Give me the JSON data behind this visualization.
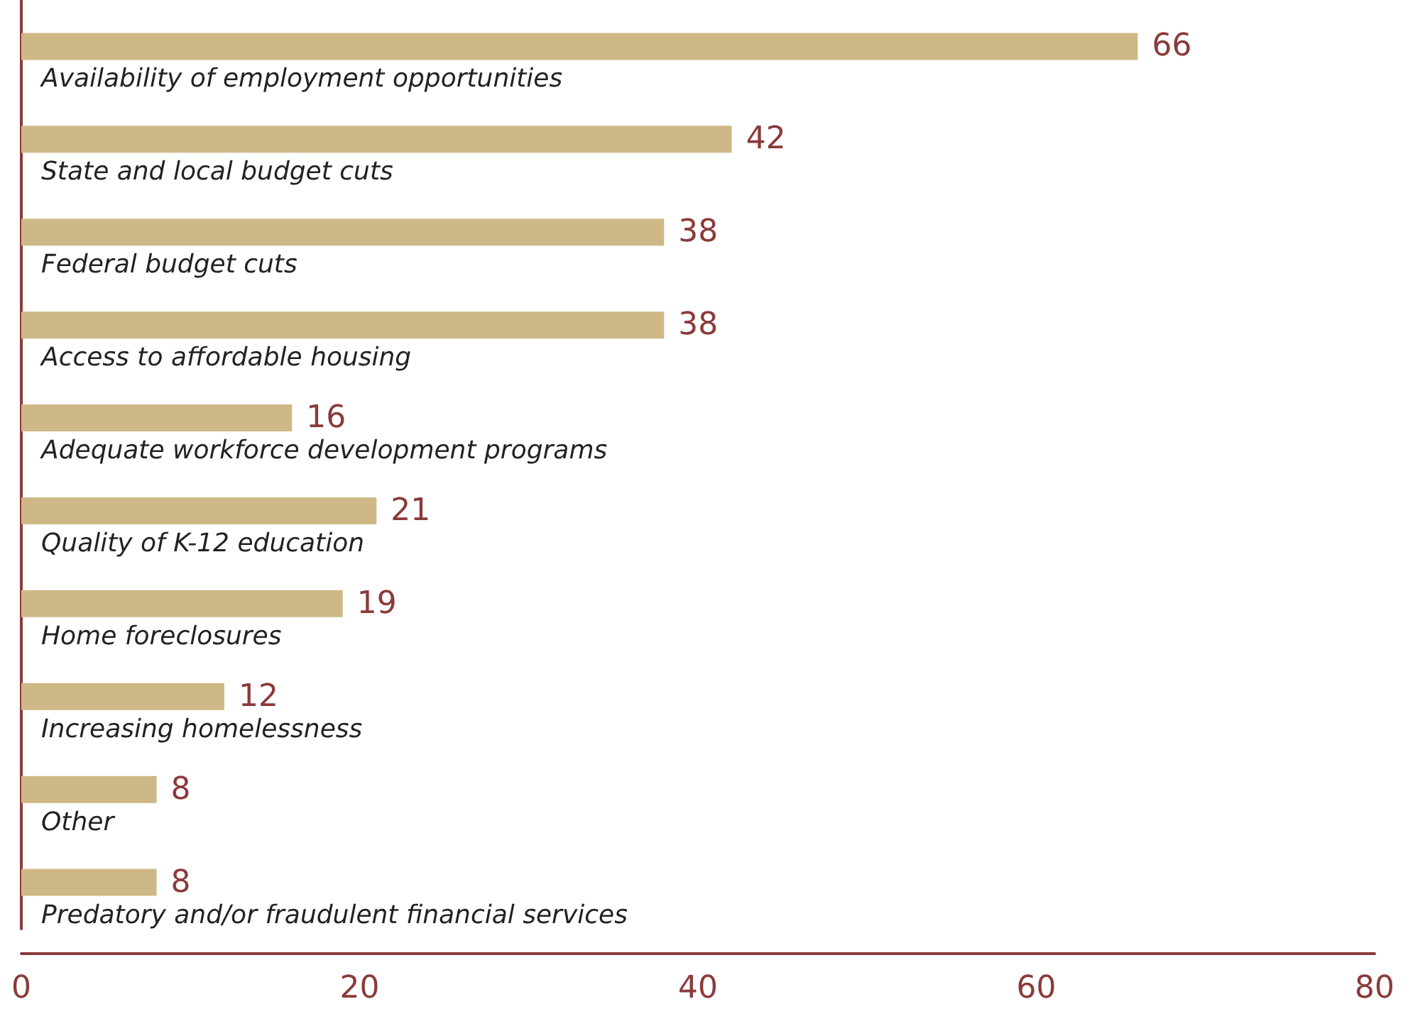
{
  "chart_data": {
    "type": "bar",
    "orientation": "horizontal",
    "categories": [
      "Availability of employment opportunities",
      "State and local budget cuts",
      "Federal budget cuts",
      "Access to affordable housing",
      "Adequate workforce development programs",
      "Quality of K-12 education",
      "Home foreclosures",
      "Increasing homelessness",
      "Other",
      "Predatory and/or fraudulent financial services"
    ],
    "values": [
      66,
      42,
      38,
      38,
      16,
      21,
      19,
      12,
      8,
      8
    ],
    "color": "#cfb887",
    "xlim": [
      0,
      80
    ],
    "xticks": [
      0,
      20,
      40,
      60,
      80
    ],
    "data_labels": true,
    "grid": false
  }
}
